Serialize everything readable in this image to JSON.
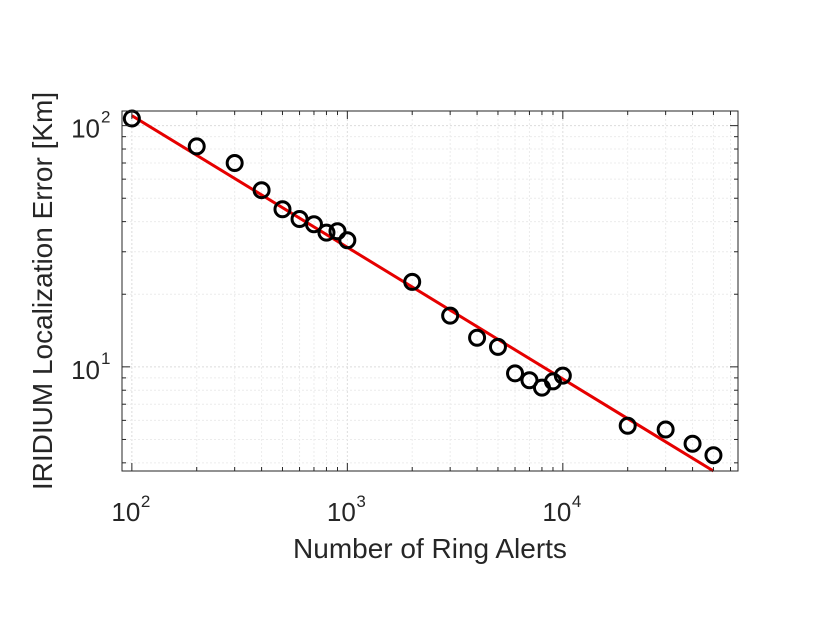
{
  "chart_data": {
    "type": "scatter",
    "title": "",
    "xlabel": "Number of Ring Alerts",
    "ylabel": "IRIDIUM Localization Error [Km]",
    "xscale": "log",
    "yscale": "log",
    "xlim": [
      90,
      65000
    ],
    "ylim": [
      3.7,
      115
    ],
    "grid": true,
    "legend": "none",
    "x_ticks": [
      {
        "base": "10",
        "exp": "2",
        "value": 100
      },
      {
        "base": "10",
        "exp": "3",
        "value": 1000
      },
      {
        "base": "10",
        "exp": "4",
        "value": 10000
      }
    ],
    "y_ticks": [
      {
        "base": "10",
        "exp": "1",
        "value": 10
      },
      {
        "base": "10",
        "exp": "2",
        "value": 100
      }
    ],
    "series": [
      {
        "type": "scatter",
        "marker": "open-circle",
        "color": "#000000",
        "x": [
          100,
          200,
          300,
          400,
          500,
          600,
          700,
          800,
          900,
          1000,
          2000,
          3000,
          4000,
          5000,
          6000,
          7000,
          8000,
          9000,
          10000,
          20000,
          30000,
          40000,
          50000
        ],
        "y": [
          107,
          82,
          70,
          54,
          45,
          41,
          39,
          36,
          36.5,
          33.5,
          22.5,
          16.3,
          13.2,
          12.1,
          9.4,
          8.8,
          8.2,
          8.7,
          9.2,
          5.7,
          5.5,
          4.8,
          4.3
        ]
      },
      {
        "type": "line",
        "color": "#e60000",
        "x": [
          100,
          50000
        ],
        "y": [
          110,
          3.7
        ]
      }
    ]
  }
}
